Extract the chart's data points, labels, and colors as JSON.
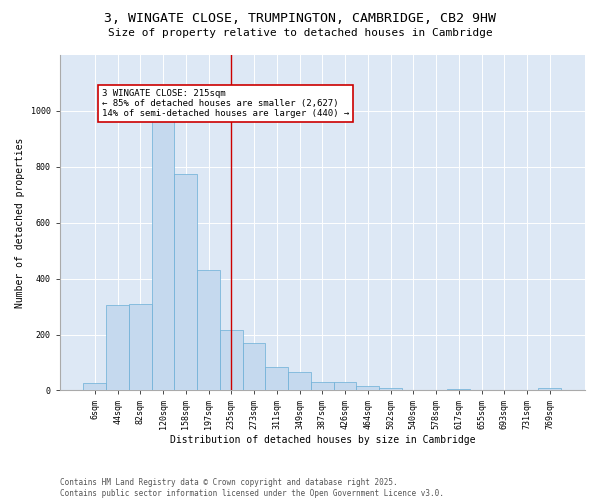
{
  "title_line1": "3, WINGATE CLOSE, TRUMPINGTON, CAMBRIDGE, CB2 9HW",
  "title_line2": "Size of property relative to detached houses in Cambridge",
  "xlabel": "Distribution of detached houses by size in Cambridge",
  "ylabel": "Number of detached properties",
  "categories": [
    "6sqm",
    "44sqm",
    "82sqm",
    "120sqm",
    "158sqm",
    "197sqm",
    "235sqm",
    "273sqm",
    "311sqm",
    "349sqm",
    "387sqm",
    "426sqm",
    "464sqm",
    "502sqm",
    "540sqm",
    "578sqm",
    "617sqm",
    "655sqm",
    "693sqm",
    "731sqm",
    "769sqm"
  ],
  "values": [
    25,
    305,
    310,
    985,
    775,
    430,
    215,
    170,
    85,
    65,
    30,
    30,
    15,
    10,
    0,
    0,
    5,
    0,
    0,
    0,
    10
  ],
  "bar_color": "#c5d9ee",
  "bar_edge_color": "#6aaed6",
  "vline_x": 6.0,
  "vline_color": "#cc0000",
  "annotation_text": "3 WINGATE CLOSE: 215sqm\n← 85% of detached houses are smaller (2,627)\n14% of semi-detached houses are larger (440) →",
  "annotation_box_color": "#ffffff",
  "annotation_box_edge_color": "#cc0000",
  "ylim": [
    0,
    1200
  ],
  "yticks": [
    0,
    200,
    400,
    600,
    800,
    1000
  ],
  "bg_color": "#dde8f5",
  "footer_line1": "Contains HM Land Registry data © Crown copyright and database right 2025.",
  "footer_line2": "Contains public sector information licensed under the Open Government Licence v3.0.",
  "title_fontsize": 9.5,
  "subtitle_fontsize": 8,
  "axis_label_fontsize": 7,
  "tick_fontsize": 6,
  "annotation_fontsize": 6.5,
  "footer_fontsize": 5.5
}
